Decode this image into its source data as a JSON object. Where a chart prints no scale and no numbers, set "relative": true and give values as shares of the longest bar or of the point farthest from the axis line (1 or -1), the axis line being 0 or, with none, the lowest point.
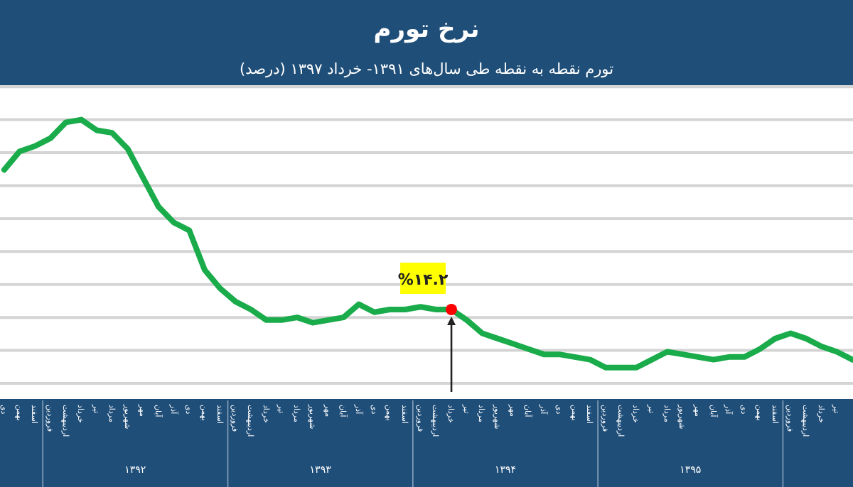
{
  "chart_data": {
    "type": "line",
    "title": "نرخ تورم",
    "subtitle": "تورم نقطه به نقطه طی سال‌های ۱۳۹۱- خرداد ۱۳۹۷ (درصد)",
    "categories": [
      "دی",
      "بهمن",
      "اسفند",
      "فروردین",
      "اردیبهشت",
      "خرداد",
      "تیر",
      "مرداد",
      "شهریور",
      "مهر",
      "آبان",
      "آذر",
      "دی",
      "بهمن",
      "اسفند",
      "فروردین",
      "اردیبهشت",
      "خرداد",
      "تیر",
      "مرداد",
      "شهریور",
      "مهر",
      "آبان",
      "آذر",
      "دی",
      "بهمن",
      "اسفند",
      "فروردین",
      "اردیبهشت",
      "خرداد",
      "تیر",
      "مرداد",
      "شهریور",
      "مهر",
      "آبان",
      "آذر",
      "دی",
      "بهمن",
      "اسفند",
      "فروردین",
      "اردیبهشت",
      "خرداد",
      "تیر",
      "مرداد",
      "شهریور",
      "مهر",
      "آبان",
      "آذر",
      "دی",
      "بهمن",
      "اسفند",
      "فروردین",
      "اردیبهشت",
      "خرداد",
      "تیر",
      null
    ],
    "series": [
      {
        "color": "#1aab4b",
        "values": [
          0.81,
          0.88,
          0.9,
          0.93,
          0.99,
          1.0,
          0.96,
          0.95,
          0.89,
          0.78,
          0.67,
          0.61,
          0.58,
          0.43,
          0.36,
          0.31,
          0.28,
          0.24,
          0.24,
          0.25,
          0.23,
          0.24,
          0.25,
          0.3,
          0.27,
          0.28,
          0.28,
          0.29,
          0.28,
          0.28,
          0.24,
          0.19,
          0.17,
          0.15,
          0.13,
          0.11,
          0.11,
          0.1,
          0.09,
          0.06,
          0.06,
          0.06,
          0.09,
          0.12,
          0.11,
          0.1,
          0.09,
          0.1,
          0.1,
          0.13,
          0.17,
          0.19,
          0.17,
          0.14,
          0.12,
          0.09
        ]
      },
      {
        "type": "scatter",
        "color": "#ff0000",
        "values": [
          null,
          null,
          null,
          null,
          null,
          null,
          null,
          null,
          null,
          null,
          null,
          null,
          null,
          null,
          null,
          null,
          null,
          null,
          null,
          null,
          null,
          null,
          null,
          null,
          null,
          null,
          null,
          null,
          null,
          0.28,
          null,
          null,
          null,
          null,
          null,
          null,
          null,
          null,
          null,
          null,
          null,
          null,
          null,
          null,
          null,
          null,
          null,
          null,
          null,
          null,
          null,
          null,
          null,
          null,
          null,
          null
        ]
      }
    ],
    "relative": true,
    "grid": "y",
    "tick_labels": "x",
    "annotations": [
      "۱۳۹۲",
      "۱۳۹۳",
      "۱۳۹۴",
      "۱۳۹۵",
      {
        "text": "%۱۴.۲"
      }
    ]
  }
}
